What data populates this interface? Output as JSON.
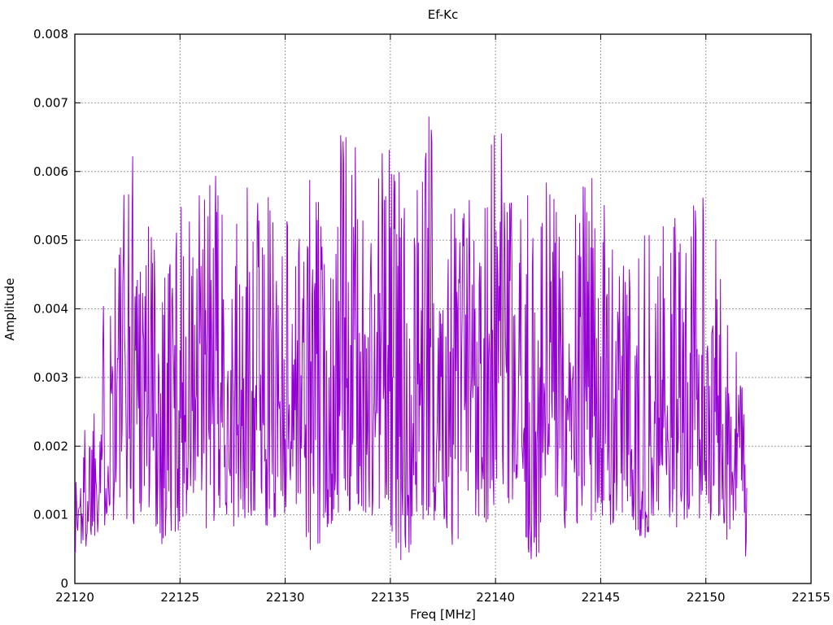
{
  "page": {
    "background": "#ffffff"
  },
  "chart_data": {
    "type": "line",
    "title": "Ef-Kc",
    "xlabel": "Freq [MHz]",
    "ylabel": "Amplitude",
    "xlim": [
      22120,
      22155
    ],
    "ylim": [
      0,
      0.008
    ],
    "x_ticks": [
      {
        "v": 22120,
        "label": "22120"
      },
      {
        "v": 22125,
        "label": "22125"
      },
      {
        "v": 22130,
        "label": "22130"
      },
      {
        "v": 22135,
        "label": "22135"
      },
      {
        "v": 22140,
        "label": "22140"
      },
      {
        "v": 22145,
        "label": "22145"
      },
      {
        "v": 22150,
        "label": "22150"
      },
      {
        "v": 22155,
        "label": "22155"
      }
    ],
    "y_ticks": [
      {
        "v": 0,
        "label": "0"
      },
      {
        "v": 0.001,
        "label": "0.001"
      },
      {
        "v": 0.002,
        "label": "0.002"
      },
      {
        "v": 0.003,
        "label": "0.003"
      },
      {
        "v": 0.004,
        "label": "0.004"
      },
      {
        "v": 0.005,
        "label": "0.005"
      },
      {
        "v": 0.006,
        "label": "0.006"
      },
      {
        "v": 0.007,
        "label": "0.007"
      },
      {
        "v": 0.008,
        "label": "0.008"
      }
    ],
    "grid": {
      "show": true,
      "color": "#9b9b9b",
      "dash": "2,2"
    },
    "border_color": "#000000",
    "tick_length": 7,
    "legend": "none",
    "series": [
      {
        "name": "Ef-Kc",
        "color": "#9400D3",
        "style": "dense noisy spectrum, lines",
        "x_start": 22120.0,
        "x_end": 22151.95,
        "points_per_mhz": 36,
        "noise_seed": 1337,
        "noise_shape_exponent": 1.4,
        "peak": {
          "freq": 22136.8,
          "amplitude": 0.0071
        },
        "typical_band": [
          0.001,
          0.006
        ],
        "envelope_keypoints": [
          [
            22120.0,
            0.0003,
            0.0018
          ],
          [
            22120.6,
            0.0005,
            0.0026
          ],
          [
            22121.2,
            0.0008,
            0.0036
          ],
          [
            22121.7,
            0.0008,
            0.0056
          ],
          [
            22122.3,
            0.001,
            0.0058
          ],
          [
            22122.75,
            0.0008,
            0.0069
          ],
          [
            22123.3,
            0.001,
            0.0064
          ],
          [
            22124.0,
            0.0006,
            0.0051
          ],
          [
            22124.5,
            0.0004,
            0.0058
          ],
          [
            22125.2,
            0.001,
            0.0055
          ],
          [
            22125.8,
            0.0006,
            0.0057
          ],
          [
            22126.5,
            0.0008,
            0.0063
          ],
          [
            22127.2,
            0.001,
            0.0052
          ],
          [
            22128.0,
            0.0005,
            0.0053
          ],
          [
            22128.5,
            0.001,
            0.0065
          ],
          [
            22129.2,
            0.0008,
            0.0057
          ],
          [
            22130.0,
            0.001,
            0.0057
          ],
          [
            22130.7,
            0.0012,
            0.0053
          ],
          [
            22131.2,
            0.0003,
            0.0063
          ],
          [
            22132.0,
            0.0008,
            0.005
          ],
          [
            22132.7,
            0.001,
            0.0069
          ],
          [
            22133.4,
            0.001,
            0.0063
          ],
          [
            22134.0,
            0.0008,
            0.0052
          ],
          [
            22134.5,
            0.001,
            0.0068
          ],
          [
            22135.2,
            0.0005,
            0.0065
          ],
          [
            22135.7,
            0.0002,
            0.0059
          ],
          [
            22136.3,
            0.001,
            0.006
          ],
          [
            22136.8,
            0.0008,
            0.0071
          ],
          [
            22137.5,
            0.001,
            0.0058
          ],
          [
            22138.2,
            0.0002,
            0.006
          ],
          [
            22139.0,
            0.001,
            0.006
          ],
          [
            22139.9,
            0.0008,
            0.0069
          ],
          [
            22140.3,
            0.001,
            0.0066
          ],
          [
            22141.0,
            0.0008,
            0.005
          ],
          [
            22141.5,
            0.0005,
            0.0058
          ],
          [
            22141.8,
            0.0001,
            0.0053
          ],
          [
            22142.6,
            0.001,
            0.0063
          ],
          [
            22143.3,
            0.0008,
            0.005
          ],
          [
            22144.0,
            0.0005,
            0.0061
          ],
          [
            22144.7,
            0.001,
            0.0061
          ],
          [
            22145.4,
            0.0008,
            0.0054
          ],
          [
            22146.2,
            0.001,
            0.0048
          ],
          [
            22147.0,
            0.0006,
            0.0051
          ],
          [
            22147.8,
            0.001,
            0.0052
          ],
          [
            22148.6,
            0.0008,
            0.0055
          ],
          [
            22149.3,
            0.001,
            0.0055
          ],
          [
            22149.9,
            0.0008,
            0.0057
          ],
          [
            22150.5,
            0.001,
            0.005
          ],
          [
            22151.0,
            0.0006,
            0.0045
          ],
          [
            22151.5,
            0.0005,
            0.0037
          ],
          [
            22151.95,
            0.0001,
            0.002
          ]
        ]
      }
    ]
  }
}
